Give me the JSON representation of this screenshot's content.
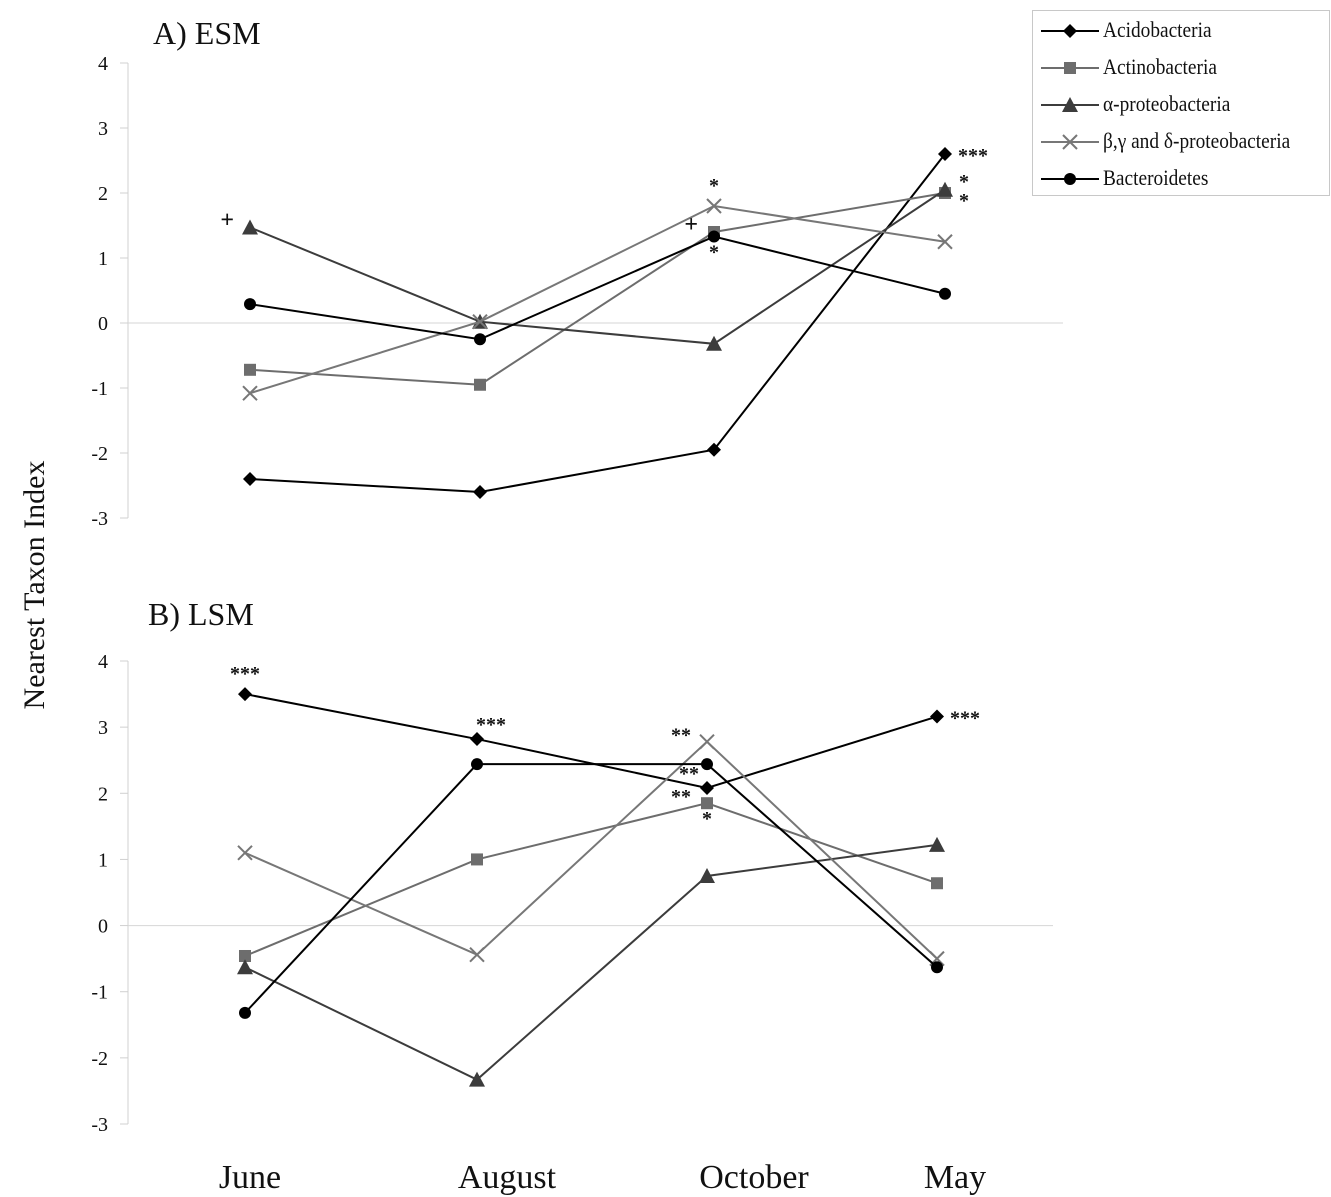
{
  "chart_data": {
    "type": "line",
    "ylabel": "Nearest Taxon Index",
    "categories": [
      "June",
      "August",
      "October",
      "May"
    ],
    "ylim": [
      -3,
      4
    ],
    "yticks": [
      -3,
      -2,
      -1,
      0,
      1,
      2,
      3,
      4
    ],
    "legend": {
      "placement": "top-right",
      "entries": [
        "Acidobacteria",
        "Actinobacteria",
        "α-proteobacteria",
        "β,γ and δ-proteobacteria",
        "Bacteroidetes"
      ]
    },
    "series_styles": [
      {
        "marker": "diamond",
        "color": "#000000"
      },
      {
        "marker": "square",
        "color": "#6d6d6d"
      },
      {
        "marker": "triangle",
        "color": "#3c3c3c"
      },
      {
        "marker": "x",
        "color": "#777777"
      },
      {
        "marker": "circle",
        "color": "#000000"
      }
    ],
    "panels": [
      {
        "title": "A) ESM",
        "series": [
          {
            "values": [
              -2.4,
              -2.6,
              -1.95,
              2.6
            ]
          },
          {
            "values": [
              -0.72,
              -0.95,
              1.4,
              2.0
            ]
          },
          {
            "values": [
              1.47,
              0.02,
              -0.32,
              2.05
            ]
          },
          {
            "values": [
              -1.08,
              0.02,
              1.8,
              1.25
            ]
          },
          {
            "values": [
              0.29,
              -0.25,
              1.33,
              0.45
            ]
          }
        ],
        "annotations": [
          {
            "text": "+",
            "x": "June",
            "y": 1.47,
            "series": 2,
            "side": "left"
          },
          {
            "text": "*",
            "x": "October",
            "y": 1.8,
            "series": 3,
            "side": "above"
          },
          {
            "text": "+",
            "x": "October",
            "y": 1.4,
            "series": 1,
            "side": "left"
          },
          {
            "text": "*",
            "x": "October",
            "y": 1.33,
            "series": 4,
            "side": "below"
          },
          {
            "text": "***",
            "x": "May",
            "y": 2.6,
            "series": 0,
            "side": "right"
          },
          {
            "text": "*",
            "x": "May",
            "y": 2.05,
            "series": 2,
            "side": "right-up"
          },
          {
            "text": "*",
            "x": "May",
            "y": 2.0,
            "series": 1,
            "side": "right-down"
          }
        ]
      },
      {
        "title": "B) LSM",
        "series": [
          {
            "values": [
              3.5,
              2.82,
              2.08,
              3.16
            ]
          },
          {
            "values": [
              -0.46,
              1.0,
              1.85,
              0.64
            ]
          },
          {
            "values": [
              -0.63,
              -2.33,
              0.75,
              1.22
            ]
          },
          {
            "values": [
              1.1,
              -0.44,
              2.78,
              -0.5
            ]
          },
          {
            "values": [
              -1.32,
              2.44,
              2.44,
              -0.63
            ]
          }
        ],
        "annotations": [
          {
            "text": "***",
            "x": "June",
            "y": 3.5,
            "series": 0,
            "side": "above"
          },
          {
            "text": "***",
            "x": "August",
            "y": 2.82,
            "series": 0,
            "side": "above-right"
          },
          {
            "text": "**",
            "x": "October",
            "y": 2.78,
            "series": 3,
            "side": "left"
          },
          {
            "text": "**",
            "x": "October",
            "y": 2.08,
            "series": 0,
            "side": "left-up"
          },
          {
            "text": "**",
            "x": "October",
            "y": 1.85,
            "series": 1,
            "side": "left"
          },
          {
            "text": "*",
            "x": "October",
            "y": 1.85,
            "series": 1,
            "side": "below"
          },
          {
            "text": "***",
            "x": "May",
            "y": 3.16,
            "series": 0,
            "side": "right"
          }
        ]
      }
    ]
  }
}
